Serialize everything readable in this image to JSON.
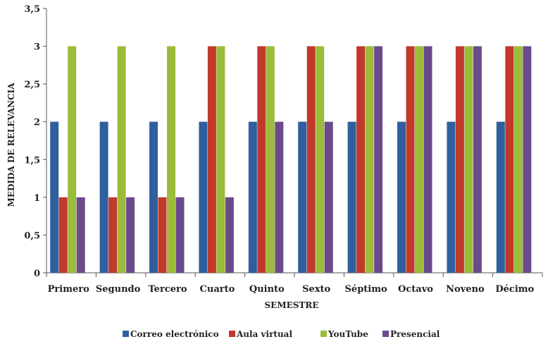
{
  "chart_data": {
    "type": "bar",
    "xlabel": "SEMESTRE",
    "ylabel": "MEDIDA DE RELEVANCIA",
    "ylim": [
      0,
      3.5
    ],
    "yticks": [
      "0",
      "0,5",
      "1",
      "1,5",
      "2",
      "2,5",
      "3",
      "3,5"
    ],
    "ytick_values": [
      0,
      0.5,
      1,
      1.5,
      2,
      2.5,
      3,
      3.5
    ],
    "grid": false,
    "legend_position": "bottom",
    "categories": [
      "Primero",
      "Segundo",
      "Tercero",
      "Cuarto",
      "Quinto",
      "Sexto",
      "Séptimo",
      "Octavo",
      "Noveno",
      "Décimo"
    ],
    "series": [
      {
        "name": "Correo electrónico",
        "color": "#2f5f9e",
        "values": [
          2,
          2,
          2,
          2,
          2,
          2,
          2,
          2,
          2,
          2
        ]
      },
      {
        "name": "Aula virtual",
        "color": "#c0392b",
        "values": [
          1,
          1,
          1,
          3,
          3,
          3,
          3,
          3,
          3,
          3
        ]
      },
      {
        "name": "YouTube",
        "color": "#9bbb3b",
        "values": [
          3,
          3,
          3,
          3,
          3,
          3,
          3,
          3,
          3,
          3
        ]
      },
      {
        "name": "Presencial",
        "color": "#6b4a8c",
        "values": [
          1,
          1,
          1,
          1,
          2,
          2,
          3,
          3,
          3,
          3
        ]
      }
    ]
  }
}
